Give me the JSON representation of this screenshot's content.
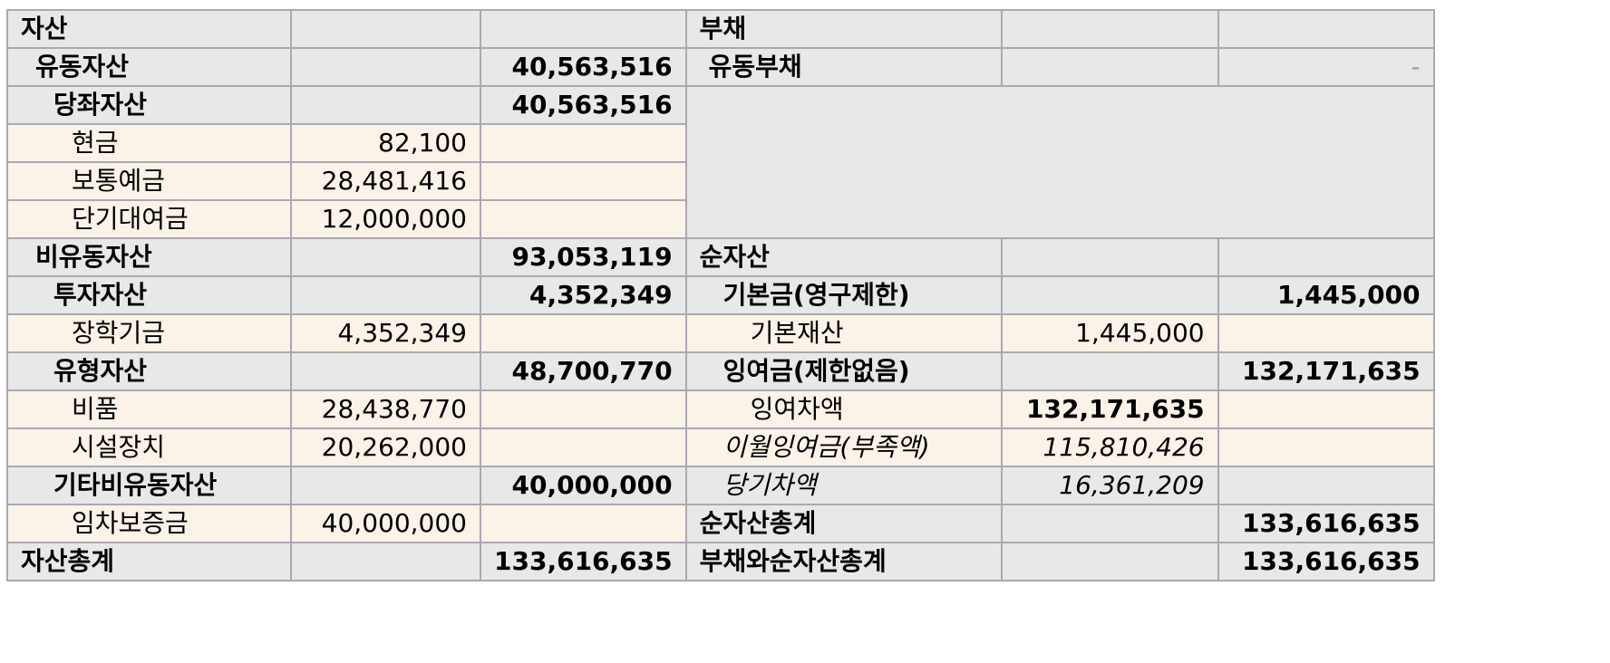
{
  "assets": {
    "header": "자산",
    "current": {
      "label": "유동자산",
      "total": "40,563,516"
    },
    "quick": {
      "label": "당좌자산",
      "total": "40,563,516"
    },
    "quick_items": [
      {
        "label": "현금",
        "value": "82,100"
      },
      {
        "label": "보통예금",
        "value": "28,481,416"
      },
      {
        "label": "단기대여금",
        "value": "12,000,000"
      }
    ],
    "noncurrent": {
      "label": "비유동자산",
      "total": "93,053,119"
    },
    "investment": {
      "label": "투자자산",
      "total": "4,352,349"
    },
    "investment_items": [
      {
        "label": "장학기금",
        "value": "4,352,349"
      }
    ],
    "tangible": {
      "label": "유형자산",
      "total": "48,700,770"
    },
    "tangible_items": [
      {
        "label": "비품",
        "value": "28,438,770"
      },
      {
        "label": "시설장치",
        "value": "20,262,000"
      }
    ],
    "other": {
      "label": "기타비유동자산",
      "total": "40,000,000"
    },
    "other_items": [
      {
        "label": "임차보증금",
        "value": "40,000,000"
      }
    ],
    "grand_total": {
      "label": "자산총계",
      "total": "133,616,635"
    }
  },
  "liabilities": {
    "header": "부채",
    "current": {
      "label": "유동부채",
      "total": "-"
    }
  },
  "net_assets": {
    "header": "순자산",
    "basic_fund": {
      "label": "기본금(영구제한)",
      "total": "1,445,000"
    },
    "basic_property": {
      "label": "기본재산",
      "value": "1,445,000"
    },
    "surplus": {
      "label": "잉여금(제한없음)",
      "total": "132,171,635"
    },
    "surplus_diff": {
      "label": "잉여차액",
      "value": "132,171,635"
    },
    "carried": {
      "label": "이월잉여금(부족액)",
      "value": "115,810,426"
    },
    "current_diff": {
      "label": "당기차액",
      "value": "16,361,209"
    },
    "net_total": {
      "label": "순자산총계",
      "total": "133,616,635"
    },
    "grand_total": {
      "label": "부채와순자산총계",
      "total": "133,616,635"
    }
  }
}
